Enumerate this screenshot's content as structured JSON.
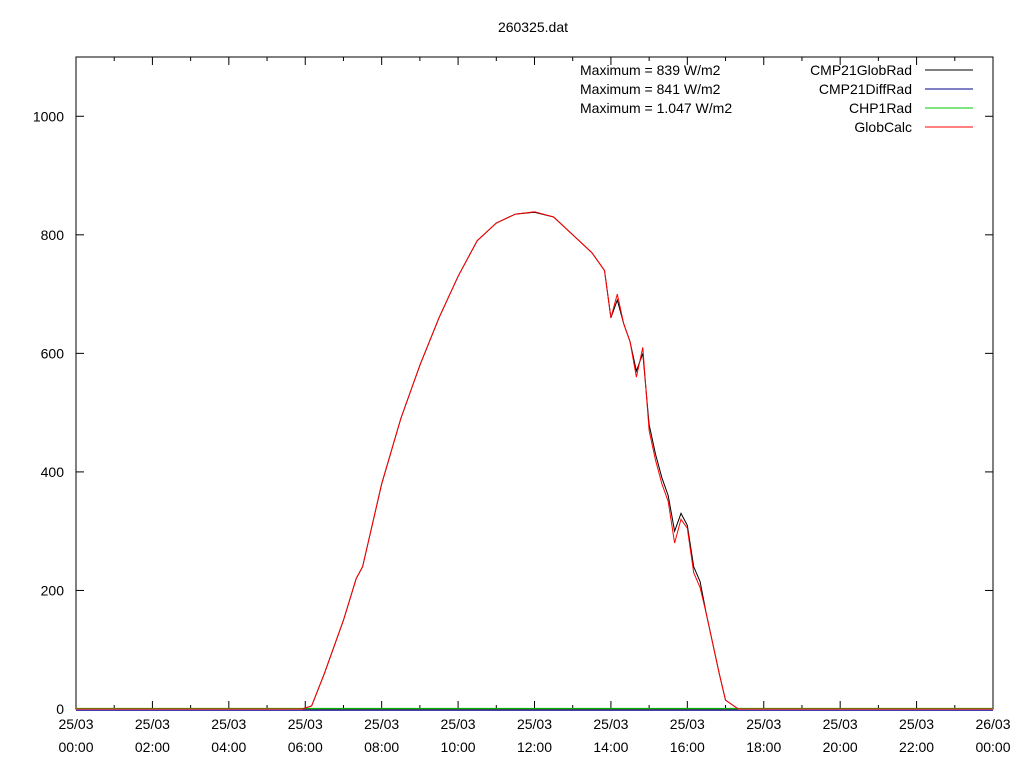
{
  "chart_data": {
    "type": "line",
    "title": "260325.dat",
    "xlabel": "",
    "ylabel": "",
    "ylim": [
      0,
      1100
    ],
    "yticks": [
      0,
      200,
      400,
      600,
      800,
      1000
    ],
    "xlim": [
      "2025-03-25 00:00",
      "2025-03-26 00:00"
    ],
    "xtick_labels": [
      [
        "25/03",
        "00:00"
      ],
      [
        "25/03",
        "02:00"
      ],
      [
        "25/03",
        "04:00"
      ],
      [
        "25/03",
        "06:00"
      ],
      [
        "25/03",
        "08:00"
      ],
      [
        "25/03",
        "10:00"
      ],
      [
        "25/03",
        "12:00"
      ],
      [
        "25/03",
        "14:00"
      ],
      [
        "25/03",
        "16:00"
      ],
      [
        "25/03",
        "18:00"
      ],
      [
        "25/03",
        "20:00"
      ],
      [
        "25/03",
        "22:00"
      ],
      [
        "26/03",
        "00:00"
      ]
    ],
    "annotations": [
      "Maximum = 839 W/m2",
      "Maximum = 841 W/m2",
      "Maximum = 1.047 W/m2"
    ],
    "grid": false,
    "legend_position": "top-right",
    "series": [
      {
        "name": "CMP21GlobRad",
        "color": "#000000",
        "x": [
          "00:00",
          "05:55",
          "06:10",
          "06:30",
          "07:00",
          "07:20",
          "07:30",
          "08:00",
          "08:30",
          "09:00",
          "09:30",
          "10:00",
          "10:30",
          "11:00",
          "11:30",
          "12:00",
          "12:30",
          "13:00",
          "13:30",
          "13:50",
          "14:00",
          "14:10",
          "14:20",
          "14:30",
          "14:40",
          "14:50",
          "15:00",
          "15:10",
          "15:20",
          "15:30",
          "15:40",
          "15:50",
          "16:00",
          "16:10",
          "16:20",
          "16:30",
          "16:40",
          "16:50",
          "17:00",
          "17:20",
          "17:40",
          "18:00",
          "18:20",
          "19:00",
          "24:00"
        ],
        "y": [
          0,
          0,
          5,
          60,
          150,
          220,
          240,
          380,
          490,
          580,
          660,
          730,
          790,
          820,
          835,
          838,
          830,
          800,
          770,
          740,
          660,
          690,
          650,
          620,
          570,
          600,
          480,
          430,
          390,
          360,
          300,
          330,
          310,
          240,
          215,
          160,
          110,
          60,
          15,
          0,
          0,
          0,
          0,
          0,
          0
        ]
      },
      {
        "name": "CMP21DiffRad",
        "color": "#00008b",
        "x": [
          "00:00",
          "02:00",
          "04:00",
          "06:00",
          "08:00",
          "10:00",
          "12:00",
          "14:00",
          "16:00",
          "18:00",
          "20:00",
          "22:00",
          "24:00"
        ],
        "y": [
          -2,
          -2,
          -2,
          -2,
          -2,
          -2,
          -2,
          -2,
          -2,
          -2,
          -2,
          -2,
          -2
        ]
      },
      {
        "name": "CHP1Rad",
        "color": "#00c800",
        "x": [
          "00:00",
          "04:00",
          "08:00",
          "12:00",
          "16:00",
          "20:00",
          "24:00"
        ],
        "y": [
          1,
          1,
          1,
          1,
          1,
          1,
          1
        ]
      },
      {
        "name": "GlobCalc",
        "color": "#ff0000",
        "x": [
          "00:00",
          "05:55",
          "06:10",
          "06:30",
          "07:00",
          "07:20",
          "07:30",
          "08:00",
          "08:30",
          "09:00",
          "09:30",
          "10:00",
          "10:30",
          "11:00",
          "11:30",
          "12:00",
          "12:30",
          "13:00",
          "13:30",
          "13:50",
          "14:00",
          "14:10",
          "14:20",
          "14:30",
          "14:40",
          "14:50",
          "15:00",
          "15:10",
          "15:20",
          "15:30",
          "15:40",
          "15:50",
          "16:00",
          "16:10",
          "16:20",
          "16:30",
          "16:40",
          "16:50",
          "17:00",
          "17:20",
          "17:40",
          "18:00",
          "18:20",
          "19:00",
          "24:00"
        ],
        "y": [
          0,
          0,
          5,
          60,
          150,
          220,
          240,
          380,
          490,
          580,
          660,
          730,
          790,
          820,
          835,
          839,
          830,
          800,
          770,
          740,
          660,
          700,
          650,
          620,
          560,
          610,
          470,
          420,
          380,
          350,
          280,
          320,
          305,
          230,
          205,
          160,
          110,
          60,
          15,
          0,
          0,
          0,
          0,
          0,
          0
        ]
      }
    ]
  }
}
